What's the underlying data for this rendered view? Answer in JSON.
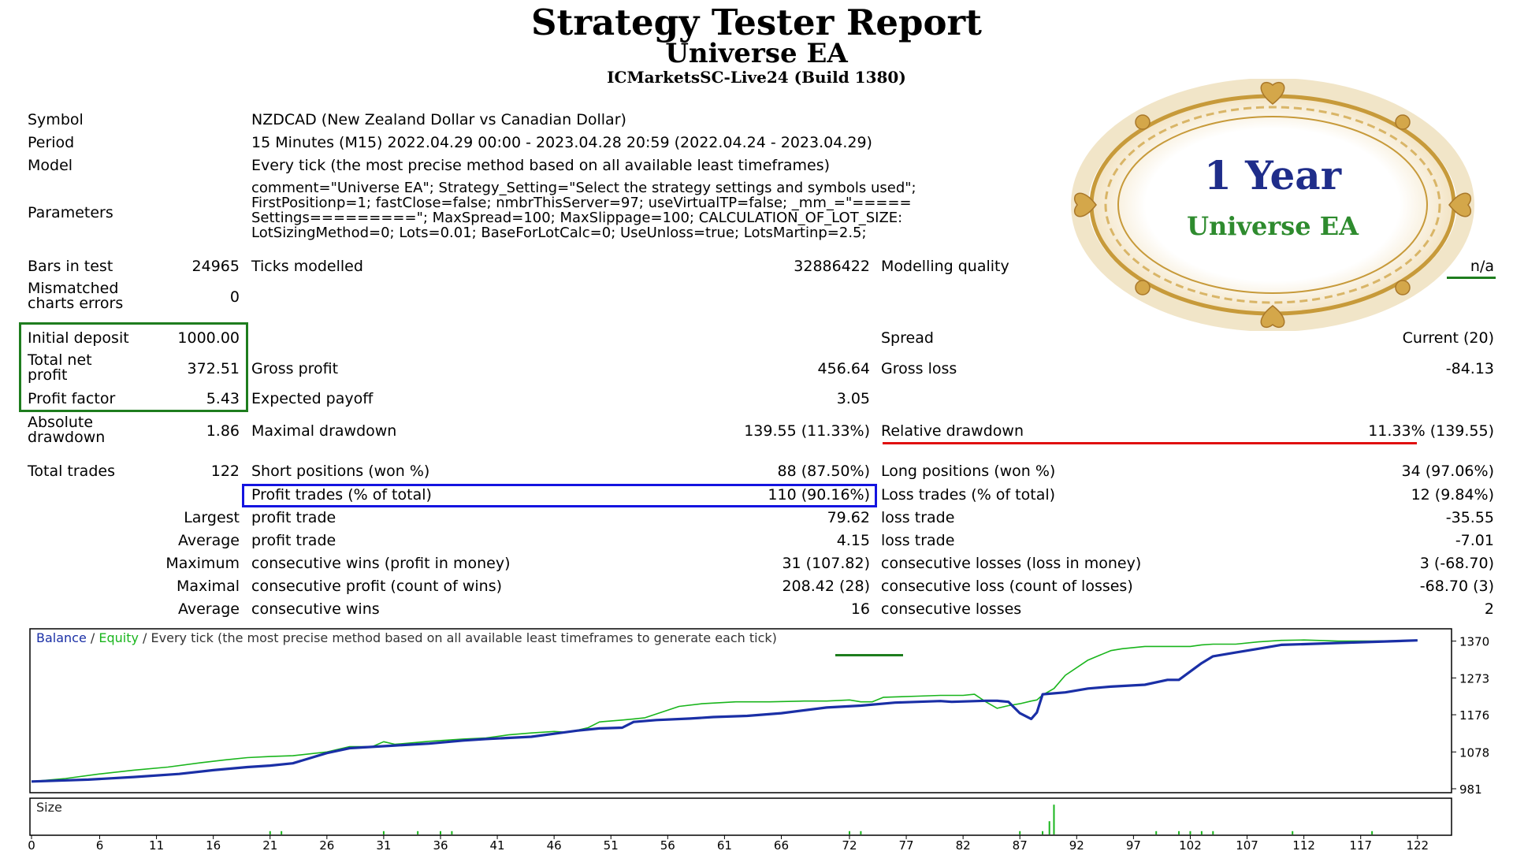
{
  "header": {
    "title": "Strategy Tester Report",
    "subtitle": "Universe EA",
    "server": "ICMarketsSC-Live24 (Build 1380)"
  },
  "badge": {
    "line1": "1 Year",
    "line2": "Universe EA"
  },
  "info": {
    "symbol_label": "Symbol",
    "symbol_value": "NZDCAD (New Zealand Dollar vs Canadian Dollar)",
    "period_label": "Period",
    "period_value": "15 Minutes (M15) 2022.04.29 00:00 - 2023.04.28 20:59 (2022.04.24 - 2023.04.29)",
    "model_label": "Model",
    "model_value": "Every tick (the most precise method based on all available least timeframes)",
    "parameters_label": "Parameters",
    "parameters_lines": [
      "comment=\"Universe EA\"; Strategy_Setting=\"Select the strategy settings and symbols used\";",
      "FirstPositionp=1; fastClose=false; nmbrThisServer=97; useVirtualTP=false; _mm_=\"=====",
      "Settings=========\"; MaxSpread=100; MaxSlippage=100; CALCULATION_OF_LOT_SIZE:",
      "LotSizingMethod=0; Lots=0.01; BaseForLotCalc=0; UseUnloss=true; LotsMartinp=2.5;"
    ]
  },
  "stats": {
    "bars_label": "Bars in test",
    "bars_value": "24965",
    "ticks_label": "Ticks modelled",
    "ticks_value": "32886422",
    "quality_label": "Modelling quality",
    "quality_value": "n/a",
    "mismatch_label_1": "Mismatched",
    "mismatch_label_2": "charts errors",
    "mismatch_value": "0",
    "initial_deposit_label": "Initial deposit",
    "initial_deposit_value": "1000.00",
    "spread_label": "Spread",
    "spread_value": "Current (20)",
    "net_profit_label_1": "Total net",
    "net_profit_label_2": "profit",
    "net_profit_value": "372.51",
    "gross_profit_label": "Gross profit",
    "gross_profit_value": "456.64",
    "gross_loss_label": "Gross loss",
    "gross_loss_value": "-84.13",
    "profit_factor_label": "Profit factor",
    "profit_factor_value": "5.43",
    "expected_payoff_label": "Expected payoff",
    "expected_payoff_value": "3.05",
    "abs_dd_label_1": "Absolute",
    "abs_dd_label_2": "drawdown",
    "abs_dd_value": "1.86",
    "max_dd_label": "Maximal drawdown",
    "max_dd_value": "139.55 (11.33%)",
    "rel_dd_label": "Relative drawdown",
    "rel_dd_value": "11.33% (139.55)"
  },
  "trades": {
    "total_label": "Total trades",
    "total_value": "122",
    "short_label": "Short positions (won %)",
    "short_value": "88 (87.50%)",
    "long_label": "Long positions (won %)",
    "long_value": "34 (97.06%)",
    "profit_trades_label": "Profit trades (% of total)",
    "profit_trades_value": "110 (90.16%)",
    "loss_trades_label": "Loss trades (% of total)",
    "loss_trades_value": "12 (9.84%)",
    "rows": [
      {
        "prefix": "Largest",
        "p_label": "profit trade",
        "p_value": "79.62",
        "l_label": "loss trade",
        "l_value": "-35.55"
      },
      {
        "prefix": "Average",
        "p_label": "profit trade",
        "p_value": "4.15",
        "l_label": "loss trade",
        "l_value": "-7.01"
      },
      {
        "prefix": "Maximum",
        "p_label": "consecutive wins (profit in money)",
        "p_value": "31 (107.82)",
        "l_label": "consecutive losses (loss in money)",
        "l_value": "3 (-68.70)"
      },
      {
        "prefix": "Maximal",
        "p_label": "consecutive profit (count of wins)",
        "p_value": "208.42 (28)",
        "l_label": "consecutive loss (count of losses)",
        "l_value": "-68.70 (3)"
      },
      {
        "prefix": "Average",
        "p_label": "consecutive wins",
        "p_value": "16",
        "l_label": "consecutive losses",
        "l_value": "2"
      }
    ]
  },
  "colors": {
    "balance": "#1a2fa6",
    "equity": "#19b51c",
    "green_box": "#1e7d1e",
    "blue_box": "#1414e0",
    "red_line": "#e01010",
    "gold": "#c79a3a",
    "badge_blue": "#1f2d8a",
    "badge_green": "#2e8b2e"
  },
  "chart_data": [
    {
      "type": "line",
      "legend_balance": "Balance",
      "legend_sep1": " / ",
      "legend_equity": "Equity",
      "legend_rest": " / Every tick (the most precise method based on all available least timeframes to generate each tick)",
      "ylim": [
        981,
        1390
      ],
      "y_ticks": [
        "1370",
        "1273",
        "1176",
        "1078",
        "981"
      ],
      "x_ticks": [
        "0",
        "6",
        "11",
        "16",
        "21",
        "26",
        "31",
        "36",
        "41",
        "46",
        "51",
        "56",
        "61",
        "66",
        "72",
        "77",
        "82",
        "87",
        "92",
        "97",
        "102",
        "107",
        "112",
        "117",
        "122"
      ],
      "series": [
        {
          "name": "Balance",
          "x": [
            0,
            5,
            9,
            13,
            16,
            19,
            21,
            23,
            26,
            28,
            32,
            35,
            38,
            40,
            44,
            46,
            48,
            50,
            52,
            53,
            55,
            58,
            60,
            63,
            66,
            70,
            73,
            76,
            80,
            81,
            84,
            85,
            86,
            87,
            88,
            88.5,
            89,
            91,
            93,
            95,
            98,
            100,
            101,
            103,
            104,
            106,
            108,
            110,
            112,
            115,
            118,
            122
          ],
          "y": [
            1000,
            1005,
            1012,
            1020,
            1030,
            1038,
            1042,
            1048,
            1075,
            1088,
            1095,
            1100,
            1108,
            1112,
            1118,
            1126,
            1134,
            1140,
            1142,
            1157,
            1162,
            1166,
            1170,
            1173,
            1180,
            1195,
            1200,
            1208,
            1212,
            1210,
            1213,
            1213,
            1210,
            1180,
            1165,
            1182,
            1230,
            1235,
            1245,
            1250,
            1255,
            1268,
            1268,
            1312,
            1330,
            1340,
            1350,
            1360,
            1362,
            1365,
            1368,
            1372
          ]
        },
        {
          "name": "Equity",
          "x": [
            0,
            3,
            6,
            9,
            12,
            15,
            17,
            19,
            21,
            23,
            26,
            28,
            30,
            31,
            32,
            35,
            38,
            40,
            42,
            44,
            46,
            47,
            48,
            49,
            50,
            52,
            53,
            54,
            57,
            59,
            62,
            65,
            68,
            70,
            72,
            73,
            74,
            75,
            78,
            80,
            82,
            83,
            84,
            85,
            86,
            87,
            88,
            88.5,
            89,
            90,
            91,
            93,
            95,
            96,
            98,
            100,
            102,
            103,
            104,
            106,
            108,
            110,
            112,
            115,
            118,
            122
          ],
          "y": [
            1000,
            1008,
            1020,
            1030,
            1038,
            1050,
            1057,
            1063,
            1066,
            1068,
            1078,
            1092,
            1092,
            1105,
            1098,
            1106,
            1112,
            1115,
            1123,
            1128,
            1132,
            1130,
            1135,
            1142,
            1157,
            1162,
            1165,
            1168,
            1198,
            1205,
            1210,
            1210,
            1212,
            1212,
            1215,
            1210,
            1210,
            1222,
            1225,
            1227,
            1227,
            1230,
            1210,
            1193,
            1200,
            1205,
            1212,
            1215,
            1228,
            1245,
            1280,
            1320,
            1345,
            1350,
            1356,
            1356,
            1356,
            1360,
            1362,
            1362,
            1368,
            1372,
            1373,
            1370,
            1370,
            1372
          ]
        }
      ]
    },
    {
      "type": "bar",
      "label": "Size",
      "x": [
        21,
        22,
        31,
        34,
        36,
        37,
        72,
        73,
        87,
        89,
        89.6,
        90,
        99,
        101,
        102,
        103,
        104,
        111,
        118
      ],
      "values": [
        1,
        1,
        1,
        1,
        1,
        1,
        1,
        1,
        1,
        1,
        4,
        9,
        1,
        1,
        1,
        1,
        1,
        1,
        1
      ]
    }
  ]
}
